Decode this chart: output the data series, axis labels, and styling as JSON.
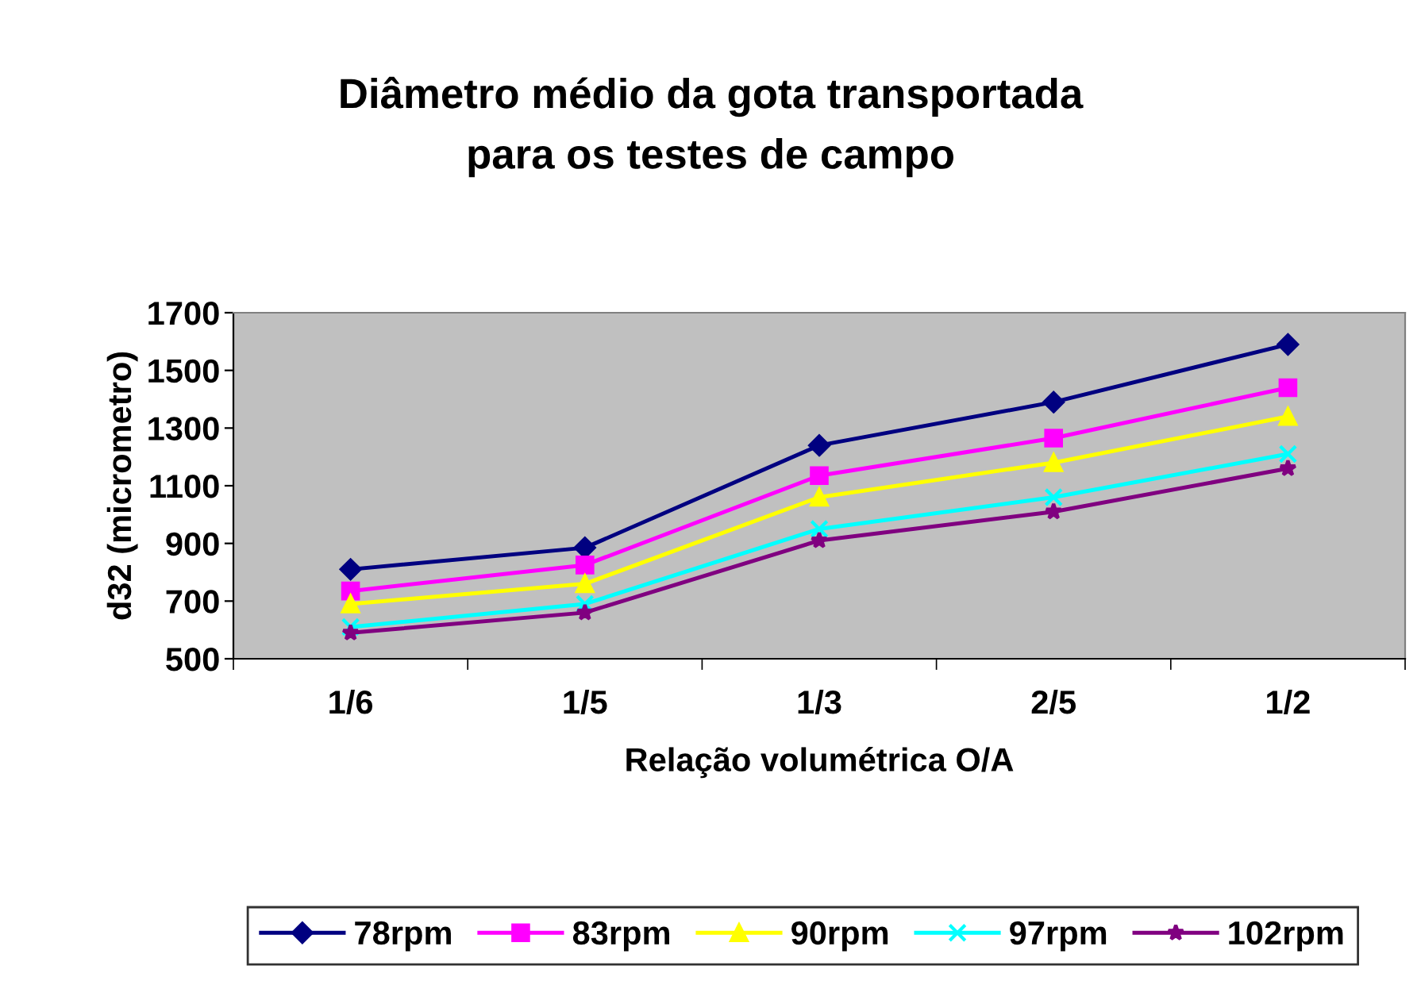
{
  "chart_data": {
    "type": "line",
    "title": "Diâmetro médio da gota transportada\npara os testes de campo",
    "xlabel": "Relação volumétrica O/A",
    "ylabel": "d32 (micrometro)",
    "categories": [
      "1/6",
      "1/5",
      "1/3",
      "2/5",
      "1/2"
    ],
    "series": [
      {
        "name": "78rpm",
        "color": "#000080",
        "marker": "diamond",
        "values": [
          810,
          885,
          1240,
          1390,
          1590
        ]
      },
      {
        "name": "83rpm",
        "color": "#ff00ff",
        "marker": "square",
        "values": [
          735,
          825,
          1135,
          1265,
          1440
        ]
      },
      {
        "name": "90rpm",
        "color": "#ffff00",
        "marker": "triangle",
        "values": [
          690,
          760,
          1060,
          1180,
          1340
        ]
      },
      {
        "name": "97rpm",
        "color": "#00ffff",
        "marker": "cross",
        "values": [
          610,
          690,
          950,
          1060,
          1210
        ]
      },
      {
        "name": "102rpm",
        "color": "#800080",
        "marker": "star",
        "values": [
          590,
          660,
          910,
          1010,
          1160
        ]
      }
    ],
    "ylim": [
      500,
      1700
    ],
    "yticks": [
      500,
      700,
      900,
      1100,
      1300,
      1500,
      1700
    ],
    "grid": false,
    "legend": "bottom",
    "line_style": "solid"
  }
}
